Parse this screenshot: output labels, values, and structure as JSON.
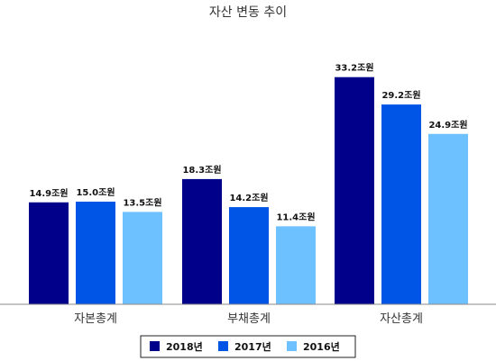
{
  "chart_data": {
    "type": "bar",
    "title": "자산 변동 추이",
    "categories": [
      "자본총계",
      "부채총계",
      "자산총계"
    ],
    "unit_suffix": "조원",
    "series": [
      {
        "name": "2018년",
        "values": [
          14.9,
          18.3,
          33.2
        ],
        "labels": [
          "14.9조원",
          "18.3조원",
          "33.2조원"
        ],
        "color": "#00008B"
      },
      {
        "name": "2017년",
        "values": [
          15.0,
          14.2,
          29.2
        ],
        "labels": [
          "15.0조원",
          "14.2조원",
          "29.2조원"
        ],
        "color": "#0055E6"
      },
      {
        "name": "2016년",
        "values": [
          13.5,
          11.4,
          24.9
        ],
        "labels": [
          "13.5조원",
          "11.4조원",
          "24.9조원"
        ],
        "color": "#6EC1FF"
      }
    ],
    "ylim": [
      0,
      39
    ],
    "grid": false,
    "legend_position": "bottom"
  }
}
